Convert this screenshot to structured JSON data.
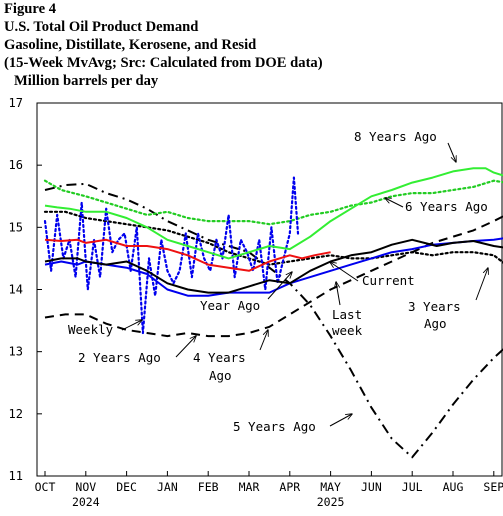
{
  "figure_label": "Figure 4",
  "colors": {
    "eight_years_ago": "#33ee33",
    "six_years_ago": "#22cc22",
    "current": "#000000",
    "last_week": "#000000",
    "year_ago": "#0000ee",
    "weekly": "#0000ee",
    "two_years_ago": "#ee1111",
    "three_years_ago": "#000000",
    "four_years_ago": "#000000",
    "five_years_ago": "#000000"
  },
  "chart_data": {
    "type": "line",
    "title": "U.S. Total Oil Product Demand",
    "subtitle": "Gasoline, Distillate, Kerosene, and Resid",
    "note": "(15-Week MvAvg; Src: Calculated from DOE data)",
    "ylabel": "Million barrels per day",
    "ylim": [
      11,
      17
    ],
    "yticks": [
      11,
      12,
      13,
      14,
      15,
      16,
      17
    ],
    "xlim": [
      0,
      11.8
    ],
    "xticks": [
      {
        "x": 0,
        "label": "OCT"
      },
      {
        "x": 1,
        "label": "NOV"
      },
      {
        "x": 2,
        "label": "DEC"
      },
      {
        "x": 3,
        "label": "JAN"
      },
      {
        "x": 4,
        "label": "FEB"
      },
      {
        "x": 5,
        "label": "MAR"
      },
      {
        "x": 6,
        "label": "APR"
      },
      {
        "x": 7,
        "label": "MAY"
      },
      {
        "x": 8,
        "label": "JUN"
      },
      {
        "x": 9,
        "label": "JUL"
      },
      {
        "x": 10,
        "label": "AUG"
      },
      {
        "x": 11,
        "label": "SEP"
      }
    ],
    "year_labels": [
      {
        "x": 1,
        "label": "2024"
      },
      {
        "x": 7,
        "label": "2025"
      }
    ],
    "grid": false,
    "series": [
      {
        "key": "eight_years_ago",
        "name": "8 Years Ago",
        "style": "solid",
        "width": 2,
        "x": [
          0,
          0.3,
          0.6,
          1.0,
          1.5,
          2.0,
          2.5,
          3.0,
          3.5,
          4.0,
          4.5,
          5.0,
          5.5,
          6.0,
          6.5,
          7.0,
          7.5,
          8.0,
          8.5,
          9.0,
          9.5,
          10.0,
          10.5,
          10.8,
          11.0,
          11.3,
          11.6,
          11.8
        ],
        "y": [
          15.35,
          15.32,
          15.3,
          15.25,
          15.25,
          15.15,
          15.0,
          14.8,
          14.7,
          14.6,
          14.5,
          14.6,
          14.7,
          14.65,
          14.85,
          15.1,
          15.3,
          15.5,
          15.6,
          15.72,
          15.8,
          15.9,
          15.95,
          15.95,
          15.88,
          15.82,
          15.88,
          15.83
        ]
      },
      {
        "key": "six_years_ago",
        "name": "6 Years Ago",
        "style": "dotted",
        "width": 2.2,
        "x": [
          0,
          0.4,
          1.0,
          1.5,
          2.0,
          2.5,
          3.0,
          3.5,
          4.0,
          4.5,
          5.0,
          5.5,
          6.0,
          6.5,
          7.0,
          7.5,
          8.0,
          8.5,
          9.0,
          9.5,
          10.0,
          10.5,
          11.0,
          11.3,
          11.8
        ],
        "y": [
          15.75,
          15.6,
          15.5,
          15.4,
          15.3,
          15.2,
          15.25,
          15.15,
          15.1,
          15.1,
          15.1,
          15.05,
          15.1,
          15.2,
          15.25,
          15.35,
          15.4,
          15.5,
          15.55,
          15.55,
          15.6,
          15.65,
          15.75,
          15.72,
          15.62
        ]
      },
      {
        "key": "current",
        "name": "Current",
        "style": "solid",
        "width": 2,
        "x": [
          0,
          0.4,
          0.8,
          1.0,
          1.5,
          2.0,
          2.5,
          3.0,
          3.5,
          4.0,
          4.5,
          5.0,
          5.5,
          6.0,
          6.5,
          7.0,
          7.5,
          8.0,
          8.5,
          9.0,
          9.3,
          9.6,
          10.0,
          10.5,
          11.0,
          11.5,
          11.8
        ],
        "y": [
          14.45,
          14.5,
          14.5,
          14.45,
          14.4,
          14.45,
          14.3,
          14.1,
          14.0,
          13.95,
          13.95,
          14.05,
          14.15,
          14.1,
          14.3,
          14.45,
          14.55,
          14.6,
          14.72,
          14.8,
          14.75,
          14.7,
          14.75,
          14.78,
          14.7,
          14.65,
          14.6
        ]
      },
      {
        "key": "last_week",
        "name": "Last week",
        "style": "solid",
        "width": 1.6,
        "x": [
          11.5,
          11.65,
          11.8
        ],
        "y": [
          14.68,
          14.66,
          14.55
        ]
      },
      {
        "key": "year_ago",
        "name": "Year Ago",
        "style": "solid",
        "width": 2,
        "x": [
          0,
          0.4,
          0.8,
          1.0,
          1.5,
          2.0,
          2.5,
          3.0,
          3.5,
          4.0,
          4.5,
          5.0,
          5.5,
          6.0,
          6.5,
          7.0,
          7.5,
          8.0,
          8.5,
          9.0,
          9.5,
          10.0,
          10.5,
          11.0,
          11.5,
          11.8
        ],
        "y": [
          14.4,
          14.45,
          14.4,
          14.45,
          14.4,
          14.35,
          14.25,
          14.0,
          13.9,
          13.9,
          13.95,
          13.95,
          13.95,
          14.1,
          14.2,
          14.3,
          14.4,
          14.5,
          14.6,
          14.65,
          14.72,
          14.75,
          14.78,
          14.8,
          14.85,
          14.75
        ]
      },
      {
        "key": "weekly",
        "name": "Weekly",
        "style": "dotted",
        "width": 2.2,
        "x": [
          0,
          0.15,
          0.3,
          0.45,
          0.6,
          0.75,
          0.9,
          1.05,
          1.2,
          1.35,
          1.5,
          1.65,
          1.8,
          1.95,
          2.1,
          2.25,
          2.4,
          2.55,
          2.7,
          2.85,
          3.0,
          3.15,
          3.3,
          3.45,
          3.6,
          3.75,
          3.9,
          4.05,
          4.2,
          4.35,
          4.5,
          4.65,
          4.8,
          4.95,
          5.1,
          5.25,
          5.4,
          5.55,
          5.7,
          5.85,
          6.0,
          6.1,
          6.2
        ],
        "y": [
          15.1,
          14.3,
          15.2,
          14.5,
          14.8,
          14.2,
          15.4,
          14.0,
          14.8,
          14.2,
          15.3,
          14.6,
          14.8,
          14.9,
          14.3,
          15.0,
          13.3,
          14.5,
          13.9,
          14.8,
          14.3,
          14.1,
          14.3,
          14.9,
          14.2,
          14.9,
          14.5,
          14.3,
          14.8,
          14.5,
          15.2,
          14.2,
          14.8,
          14.6,
          14.3,
          14.8,
          14.0,
          15.0,
          14.1,
          14.5,
          14.9,
          15.8,
          14.9
        ]
      },
      {
        "key": "two_years_ago",
        "name": "2 Years Ago",
        "style": "solid",
        "width": 2,
        "x": [
          0,
          0.4,
          0.8,
          1.0,
          1.5,
          2.0,
          2.5,
          3.0,
          3.5,
          4.0,
          4.5,
          5.0,
          5.5,
          6.0,
          6.3,
          6.6,
          7.0
        ],
        "y": [
          14.8,
          14.78,
          14.8,
          14.75,
          14.8,
          14.7,
          14.7,
          14.65,
          14.55,
          14.4,
          14.35,
          14.3,
          14.45,
          14.55,
          14.5,
          14.55,
          14.6
        ]
      },
      {
        "key": "three_years_ago",
        "name": "3 Years Ago",
        "style": "dotted",
        "width": 2.2,
        "x": [
          0,
          0.5,
          1.0,
          1.5,
          2.0,
          2.5,
          3.0,
          3.5,
          4.0,
          4.5,
          5.0,
          5.5,
          6.0,
          6.5,
          7.0,
          7.5,
          8.0,
          8.5,
          9.0,
          9.5,
          10.0,
          10.5,
          11.0,
          11.3,
          11.6,
          11.8
        ],
        "y": [
          15.25,
          15.25,
          15.15,
          15.1,
          15.05,
          15.0,
          14.95,
          14.85,
          14.75,
          14.6,
          14.5,
          14.4,
          14.45,
          14.5,
          14.55,
          14.5,
          14.5,
          14.55,
          14.6,
          14.55,
          14.6,
          14.6,
          14.55,
          14.4,
          14.3,
          14.45
        ]
      },
      {
        "key": "four_years_ago",
        "name": "4 Years Ago",
        "style": "dashed",
        "width": 2,
        "x": [
          0,
          0.5,
          1.0,
          1.5,
          2.0,
          2.5,
          3.0,
          3.5,
          4.0,
          4.5,
          5.0,
          5.5,
          6.0,
          6.5,
          7.0,
          7.5,
          8.0,
          8.5,
          9.0,
          9.5,
          10.0,
          10.5,
          11.0,
          11.3,
          11.6,
          11.8
        ],
        "y": [
          13.55,
          13.6,
          13.6,
          13.45,
          13.35,
          13.3,
          13.25,
          13.3,
          13.25,
          13.25,
          13.3,
          13.4,
          13.6,
          13.8,
          14.0,
          14.15,
          14.3,
          14.45,
          14.6,
          14.75,
          14.85,
          14.95,
          15.1,
          15.2,
          15.1,
          15.25
        ]
      },
      {
        "key": "five_years_ago",
        "name": "5 Years Ago",
        "style": "dashdot",
        "width": 2,
        "x": [
          0,
          0.5,
          1.0,
          1.5,
          2.0,
          2.5,
          3.0,
          3.5,
          4.0,
          4.5,
          5.0,
          5.5,
          6.0,
          6.5,
          7.0,
          7.5,
          8.0,
          8.5,
          9.0,
          9.5,
          10.0,
          10.5,
          11.0,
          11.5,
          11.8
        ],
        "y": [
          15.6,
          15.68,
          15.7,
          15.55,
          15.45,
          15.3,
          15.1,
          14.95,
          14.8,
          14.7,
          14.6,
          14.35,
          14.1,
          13.75,
          13.25,
          12.7,
          12.1,
          11.6,
          11.3,
          11.7,
          12.15,
          12.55,
          12.9,
          13.2,
          13.5
        ]
      }
    ],
    "annotations": [
      {
        "key": "eight_years_ago",
        "text": "8 Years Ago"
      },
      {
        "key": "six_years_ago",
        "text": "6 Years Ago"
      },
      {
        "key": "current",
        "text": "Current"
      },
      {
        "key": "year_ago",
        "text": "Year Ago"
      },
      {
        "key": "last_week",
        "text": "Last week"
      },
      {
        "key": "three_years_ago",
        "text": "3 Years Ago"
      },
      {
        "key": "weekly",
        "text": "Weekly"
      },
      {
        "key": "two_years_ago",
        "text": "2 Years Ago"
      },
      {
        "key": "four_years_ago",
        "text": "4 Years Ago"
      },
      {
        "key": "five_years_ago",
        "text": "5 Years Ago"
      }
    ]
  }
}
